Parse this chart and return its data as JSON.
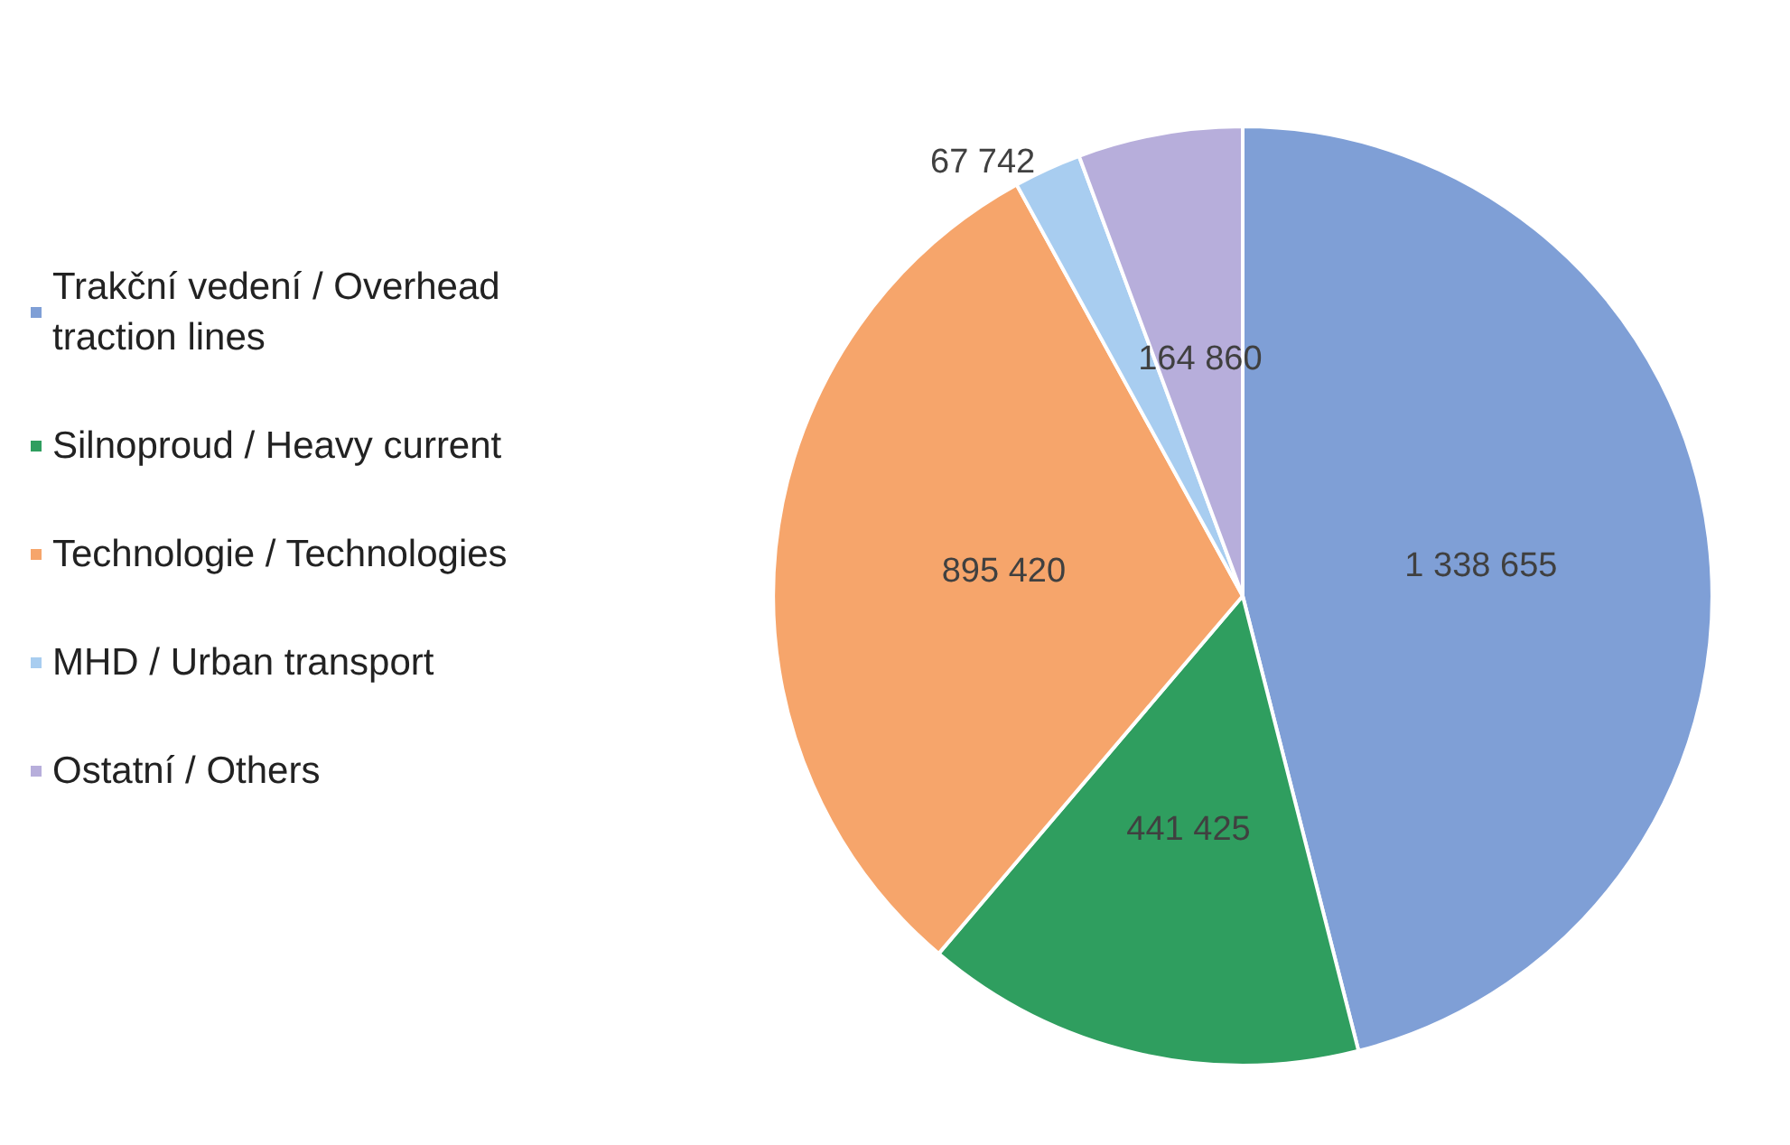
{
  "chart_data": {
    "type": "pie",
    "categories": [
      "Trakční vedení / Overhead traction lines",
      "Silnoproud / Heavy current",
      "Technologie / Technologies",
      "MHD / Urban transport",
      "Ostatní / Others"
    ],
    "values": [
      1338655,
      441425,
      895420,
      67742,
      164860
    ],
    "value_labels": [
      "1 338 655",
      "441 425",
      "895 420",
      "67 742",
      "164 860"
    ],
    "colors": [
      "#7f9fd6",
      "#2f9e5f",
      "#f6a56b",
      "#a8cdf0",
      "#b7aedb"
    ],
    "legend": "left"
  }
}
